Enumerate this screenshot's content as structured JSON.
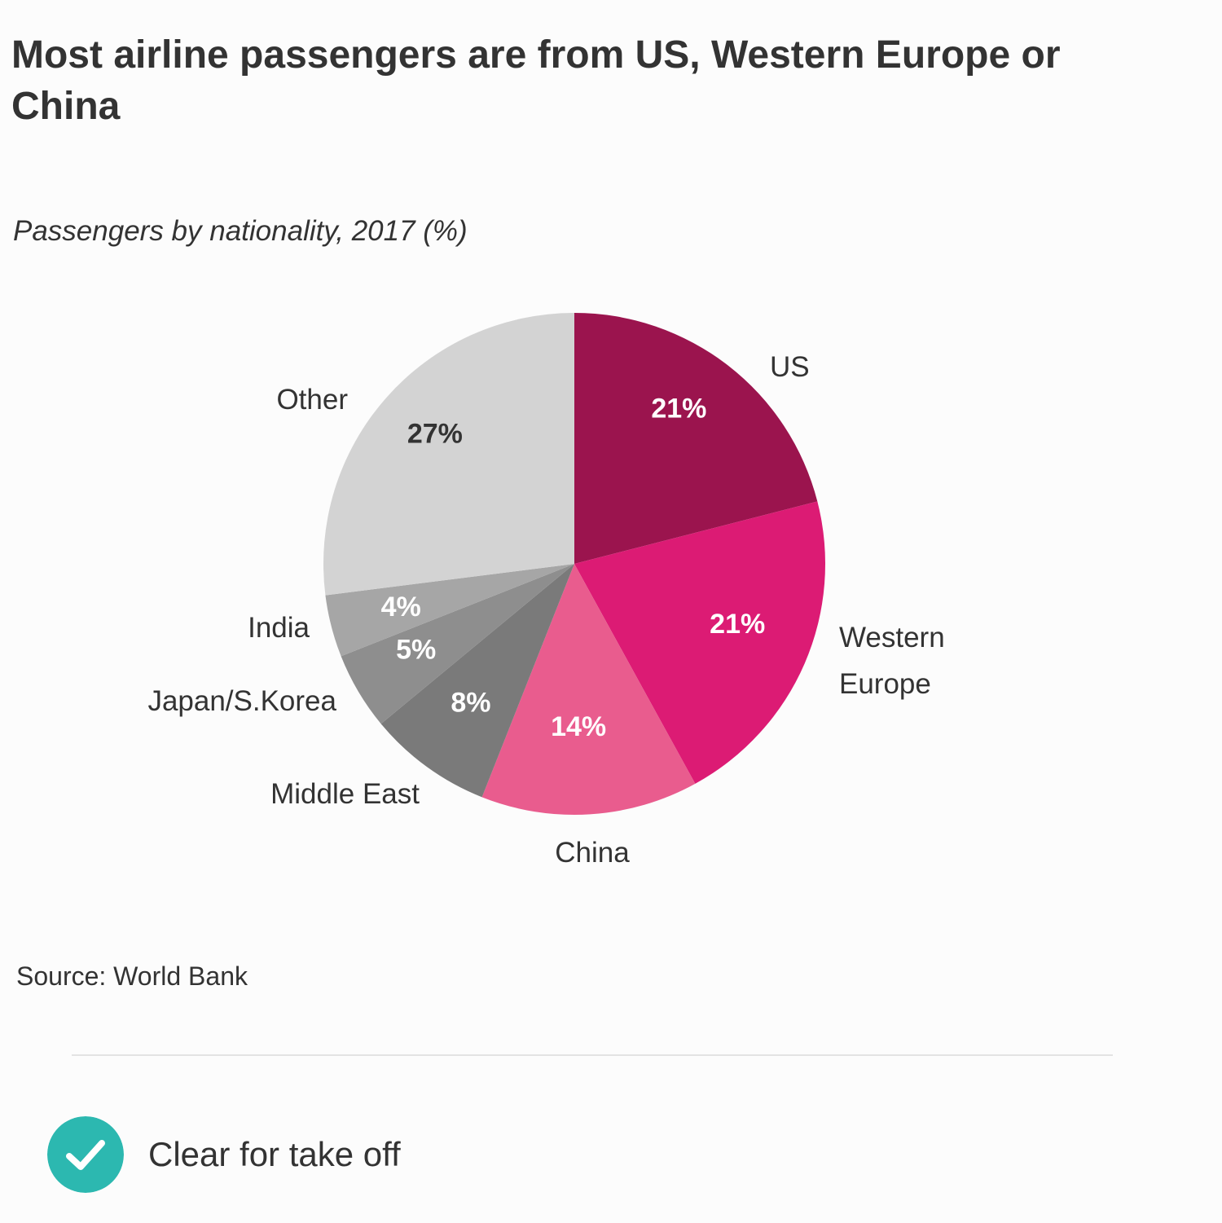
{
  "title": "Most airline passengers are from US, Western Europe or China",
  "subtitle": "Passengers by nationality, 2017 (%)",
  "source": "Source: World Bank",
  "verdict": {
    "text": "Clear for take off",
    "icon": "check-circle-icon",
    "color": "#2cb8b0"
  },
  "chart_data": {
    "type": "pie",
    "title": "Most airline passengers are from US, Western Europe or China",
    "subtitle": "Passengers by nationality, 2017 (%)",
    "start": "12 o'clock",
    "direction": "clockwise",
    "slices": [
      {
        "key": "us",
        "label": "US",
        "value": 21,
        "value_label": "21%",
        "color": "#9b144e",
        "value_color": "#ffffff"
      },
      {
        "key": "western-europe",
        "label": "Western Europe",
        "label_lines": [
          "Western",
          "Europe"
        ],
        "value": 21,
        "value_label": "21%",
        "color": "#dc1b74",
        "value_color": "#ffffff"
      },
      {
        "key": "china",
        "label": "China",
        "value": 14,
        "value_label": "14%",
        "color": "#e95c8e",
        "value_color": "#ffffff"
      },
      {
        "key": "middle-east",
        "label": "Middle East",
        "value": 8,
        "value_label": "8%",
        "color": "#7a7a7a",
        "value_color": "#ffffff"
      },
      {
        "key": "japan-s-korea",
        "label": "Japan/S.Korea",
        "value": 5,
        "value_label": "5%",
        "color": "#8e8e8e",
        "value_color": "#ffffff"
      },
      {
        "key": "india",
        "label": "India",
        "value": 4,
        "value_label": "4%",
        "color": "#a6a6a6",
        "value_color": "#ffffff"
      },
      {
        "key": "other",
        "label": "Other",
        "value": 27,
        "value_label": "27%",
        "color": "#d3d3d3",
        "value_color": "#333333"
      }
    ]
  }
}
